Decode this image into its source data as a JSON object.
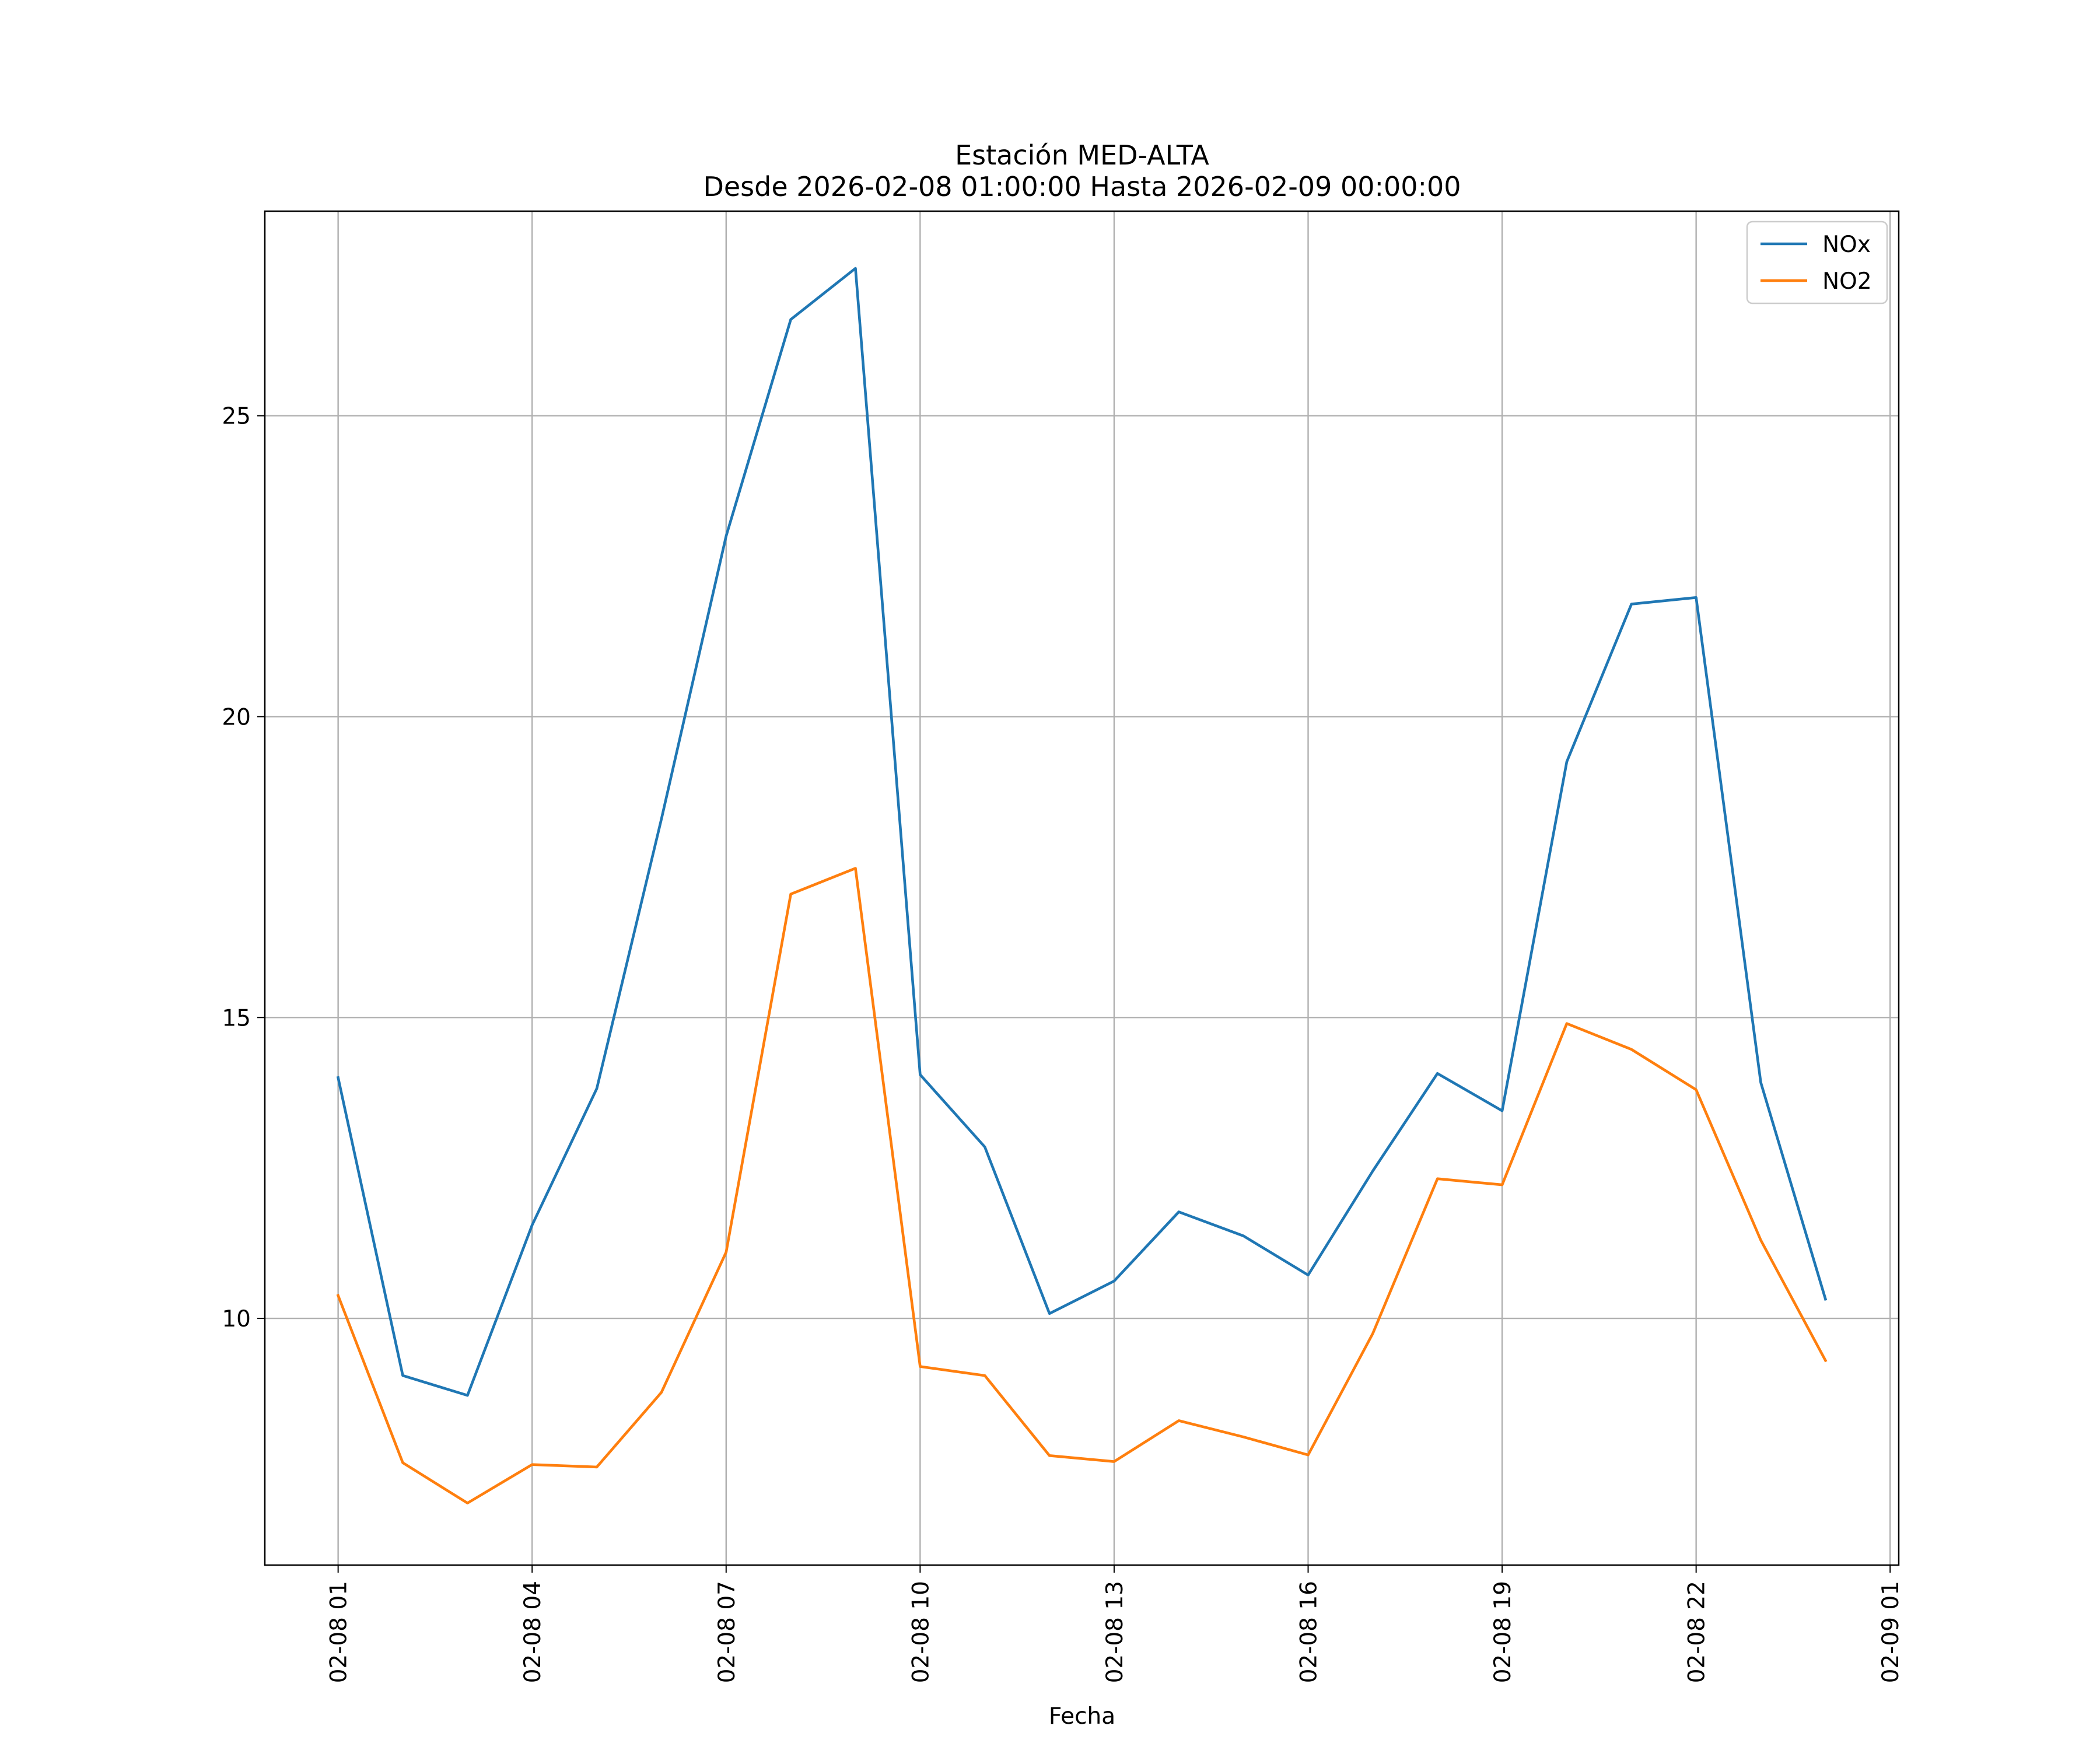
{
  "chart_data": {
    "type": "line",
    "title": "Estación MED-ALTA",
    "subtitle": "Desde 2026-02-08 01:00:00 Hasta 2026-02-09 00:00:00",
    "xlabel": "Fecha",
    "ylabel": "",
    "x": [
      "2026-02-08 01:00",
      "2026-02-08 02:00",
      "2026-02-08 03:00",
      "2026-02-08 04:00",
      "2026-02-08 05:00",
      "2026-02-08 06:00",
      "2026-02-08 07:00",
      "2026-02-08 08:00",
      "2026-02-08 09:00",
      "2026-02-08 10:00",
      "2026-02-08 11:00",
      "2026-02-08 12:00",
      "2026-02-08 13:00",
      "2026-02-08 14:00",
      "2026-02-08 15:00",
      "2026-02-08 16:00",
      "2026-02-08 17:00",
      "2026-02-08 18:00",
      "2026-02-08 19:00",
      "2026-02-08 20:00",
      "2026-02-08 21:00",
      "2026-02-08 22:00",
      "2026-02-08 23:00",
      "2026-02-09 00:00"
    ],
    "xlim": [
      "2026-02-07 23:52",
      "2026-02-09 01:08"
    ],
    "x_ticks": [
      {
        "at": "2026-02-08 01:00",
        "label": "02-08 01"
      },
      {
        "at": "2026-02-08 04:00",
        "label": "02-08 04"
      },
      {
        "at": "2026-02-08 07:00",
        "label": "02-08 07"
      },
      {
        "at": "2026-02-08 10:00",
        "label": "02-08 10"
      },
      {
        "at": "2026-02-08 13:00",
        "label": "02-08 13"
      },
      {
        "at": "2026-02-08 16:00",
        "label": "02-08 16"
      },
      {
        "at": "2026-02-08 19:00",
        "label": "02-08 19"
      },
      {
        "at": "2026-02-08 22:00",
        "label": "02-08 22"
      },
      {
        "at": "2026-02-09 01:00",
        "label": "02-09 01"
      }
    ],
    "y_ticks": [
      {
        "value": 10,
        "label": "10"
      },
      {
        "value": 15,
        "label": "15"
      },
      {
        "value": 20,
        "label": "20"
      },
      {
        "value": 25,
        "label": "25"
      }
    ],
    "ylim": [
      5.9,
      28.4
    ],
    "grid": true,
    "legend": "top-right",
    "series": [
      {
        "name": "NOx",
        "color": "#1f77b4",
        "values": [
          14.0,
          9.05,
          8.72,
          11.55,
          13.82,
          18.3,
          23.0,
          26.6,
          27.45,
          14.05,
          12.85,
          10.08,
          10.62,
          11.77,
          11.37,
          10.72,
          12.45,
          14.07,
          13.45,
          19.25,
          21.87,
          21.98,
          13.92,
          10.32
        ]
      },
      {
        "name": "NO2",
        "color": "#ff7f0e",
        "values": [
          10.38,
          7.6,
          6.93,
          7.57,
          7.53,
          8.77,
          11.1,
          17.05,
          17.48,
          9.2,
          9.05,
          7.72,
          7.62,
          8.3,
          8.03,
          7.73,
          9.75,
          12.32,
          12.22,
          14.9,
          14.47,
          13.8,
          11.3,
          9.3
        ]
      }
    ]
  }
}
